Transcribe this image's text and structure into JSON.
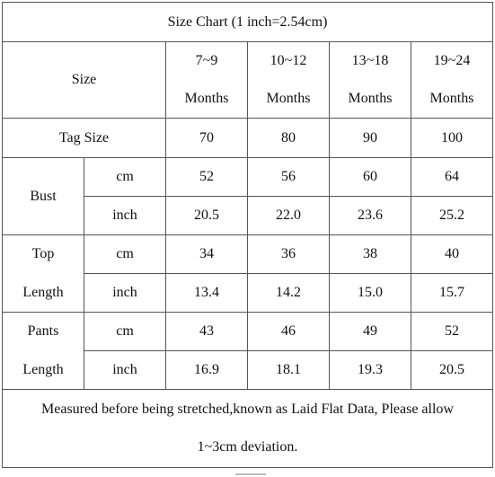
{
  "title": "Size Chart (1 inch=2.54cm)",
  "size_label": "Size",
  "sizes": [
    {
      "line1": "7~9",
      "line2": "Months"
    },
    {
      "line1": "10~12",
      "line2": "Months"
    },
    {
      "line1": "13~18",
      "line2": "Months"
    },
    {
      "line1": "19~24",
      "line2": "Months"
    }
  ],
  "tag": {
    "label": "Tag Size",
    "values": [
      "70",
      "80",
      "90",
      "100"
    ]
  },
  "bust": {
    "label": "Bust",
    "cm_label": "cm",
    "cm": [
      "52",
      "56",
      "60",
      "64"
    ],
    "inch_label": "inch",
    "inch": [
      "20.5",
      "22.0",
      "23.6",
      "25.2"
    ]
  },
  "top_length": {
    "label1": "Top",
    "label2": "Length",
    "cm_label": "cm",
    "cm": [
      "34",
      "36",
      "38",
      "40"
    ],
    "inch_label": "inch",
    "inch": [
      "13.4",
      "14.2",
      "15.0",
      "15.7"
    ]
  },
  "pants_length": {
    "label1": "Pants",
    "label2": "Length",
    "cm_label": "cm",
    "cm": [
      "43",
      "46",
      "49",
      "52"
    ],
    "inch_label": "inch",
    "inch": [
      "16.9",
      "18.1",
      "19.3",
      "20.5"
    ]
  },
  "note": {
    "line1": "Measured before being stretched,known as Laid Flat Data, Please allow",
    "line2": "1~3cm deviation."
  }
}
